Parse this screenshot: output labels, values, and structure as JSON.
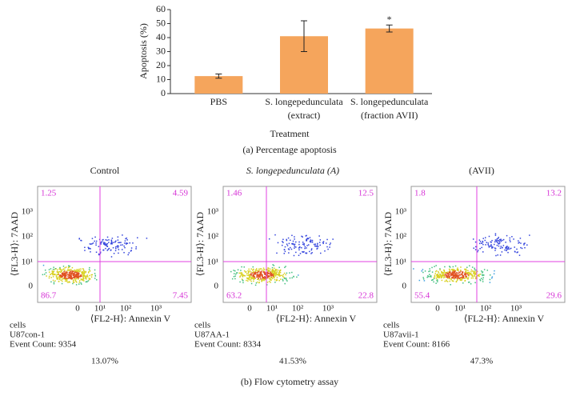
{
  "chart_data": {
    "type": "bar",
    "categories": [
      [
        "PBS"
      ],
      [
        "S. longepedunculata",
        "(extract)"
      ],
      [
        "S. longepedunculata",
        "(fraction AVII)"
      ]
    ],
    "values": [
      12.5,
      41,
      46.5
    ],
    "errors": [
      1.5,
      11,
      2.5
    ],
    "color": "#f5a55c",
    "ylim": [
      0,
      60
    ],
    "yticks": [
      0,
      10,
      20,
      30,
      40,
      50,
      60
    ],
    "ylabel": "Apoptosis (%)",
    "xlabel": "Treatment",
    "annotations": [
      {
        "category": 2,
        "text": "*"
      }
    ]
  },
  "caption_a": "(a)  Percentage apoptosis",
  "flow": {
    "y_axis_label": "⟨FL3-H⟩: 7AAD",
    "x_axis_label": "⟨FL2-H⟩: Annexin V",
    "tick_labels": [
      "0",
      "10¹",
      "10²",
      "10³"
    ],
    "panels": [
      {
        "title": "Control",
        "quadrants": [
          "1.25",
          "4.59",
          "86.7",
          "7.45"
        ],
        "info": [
          "cells",
          "U87con-1",
          "Event Count: 9354"
        ],
        "percentage": "13.07%"
      },
      {
        "title": "S. longepedunculata (A)",
        "quadrants": [
          "1.46",
          "12.5",
          "63.2",
          "22.8"
        ],
        "info": [
          "cells",
          "U87AA-1",
          "Event Count: 8334"
        ],
        "percentage": "41.53%"
      },
      {
        "title": "(AVII)",
        "quadrants": [
          "1.8",
          "13.2",
          "55.4",
          "29.6"
        ],
        "info": [
          "cells",
          "U87avii-1",
          "Event Count: 8166"
        ],
        "percentage": "47.3%"
      }
    ]
  },
  "caption_b": "(b)  Flow cytometry assay"
}
